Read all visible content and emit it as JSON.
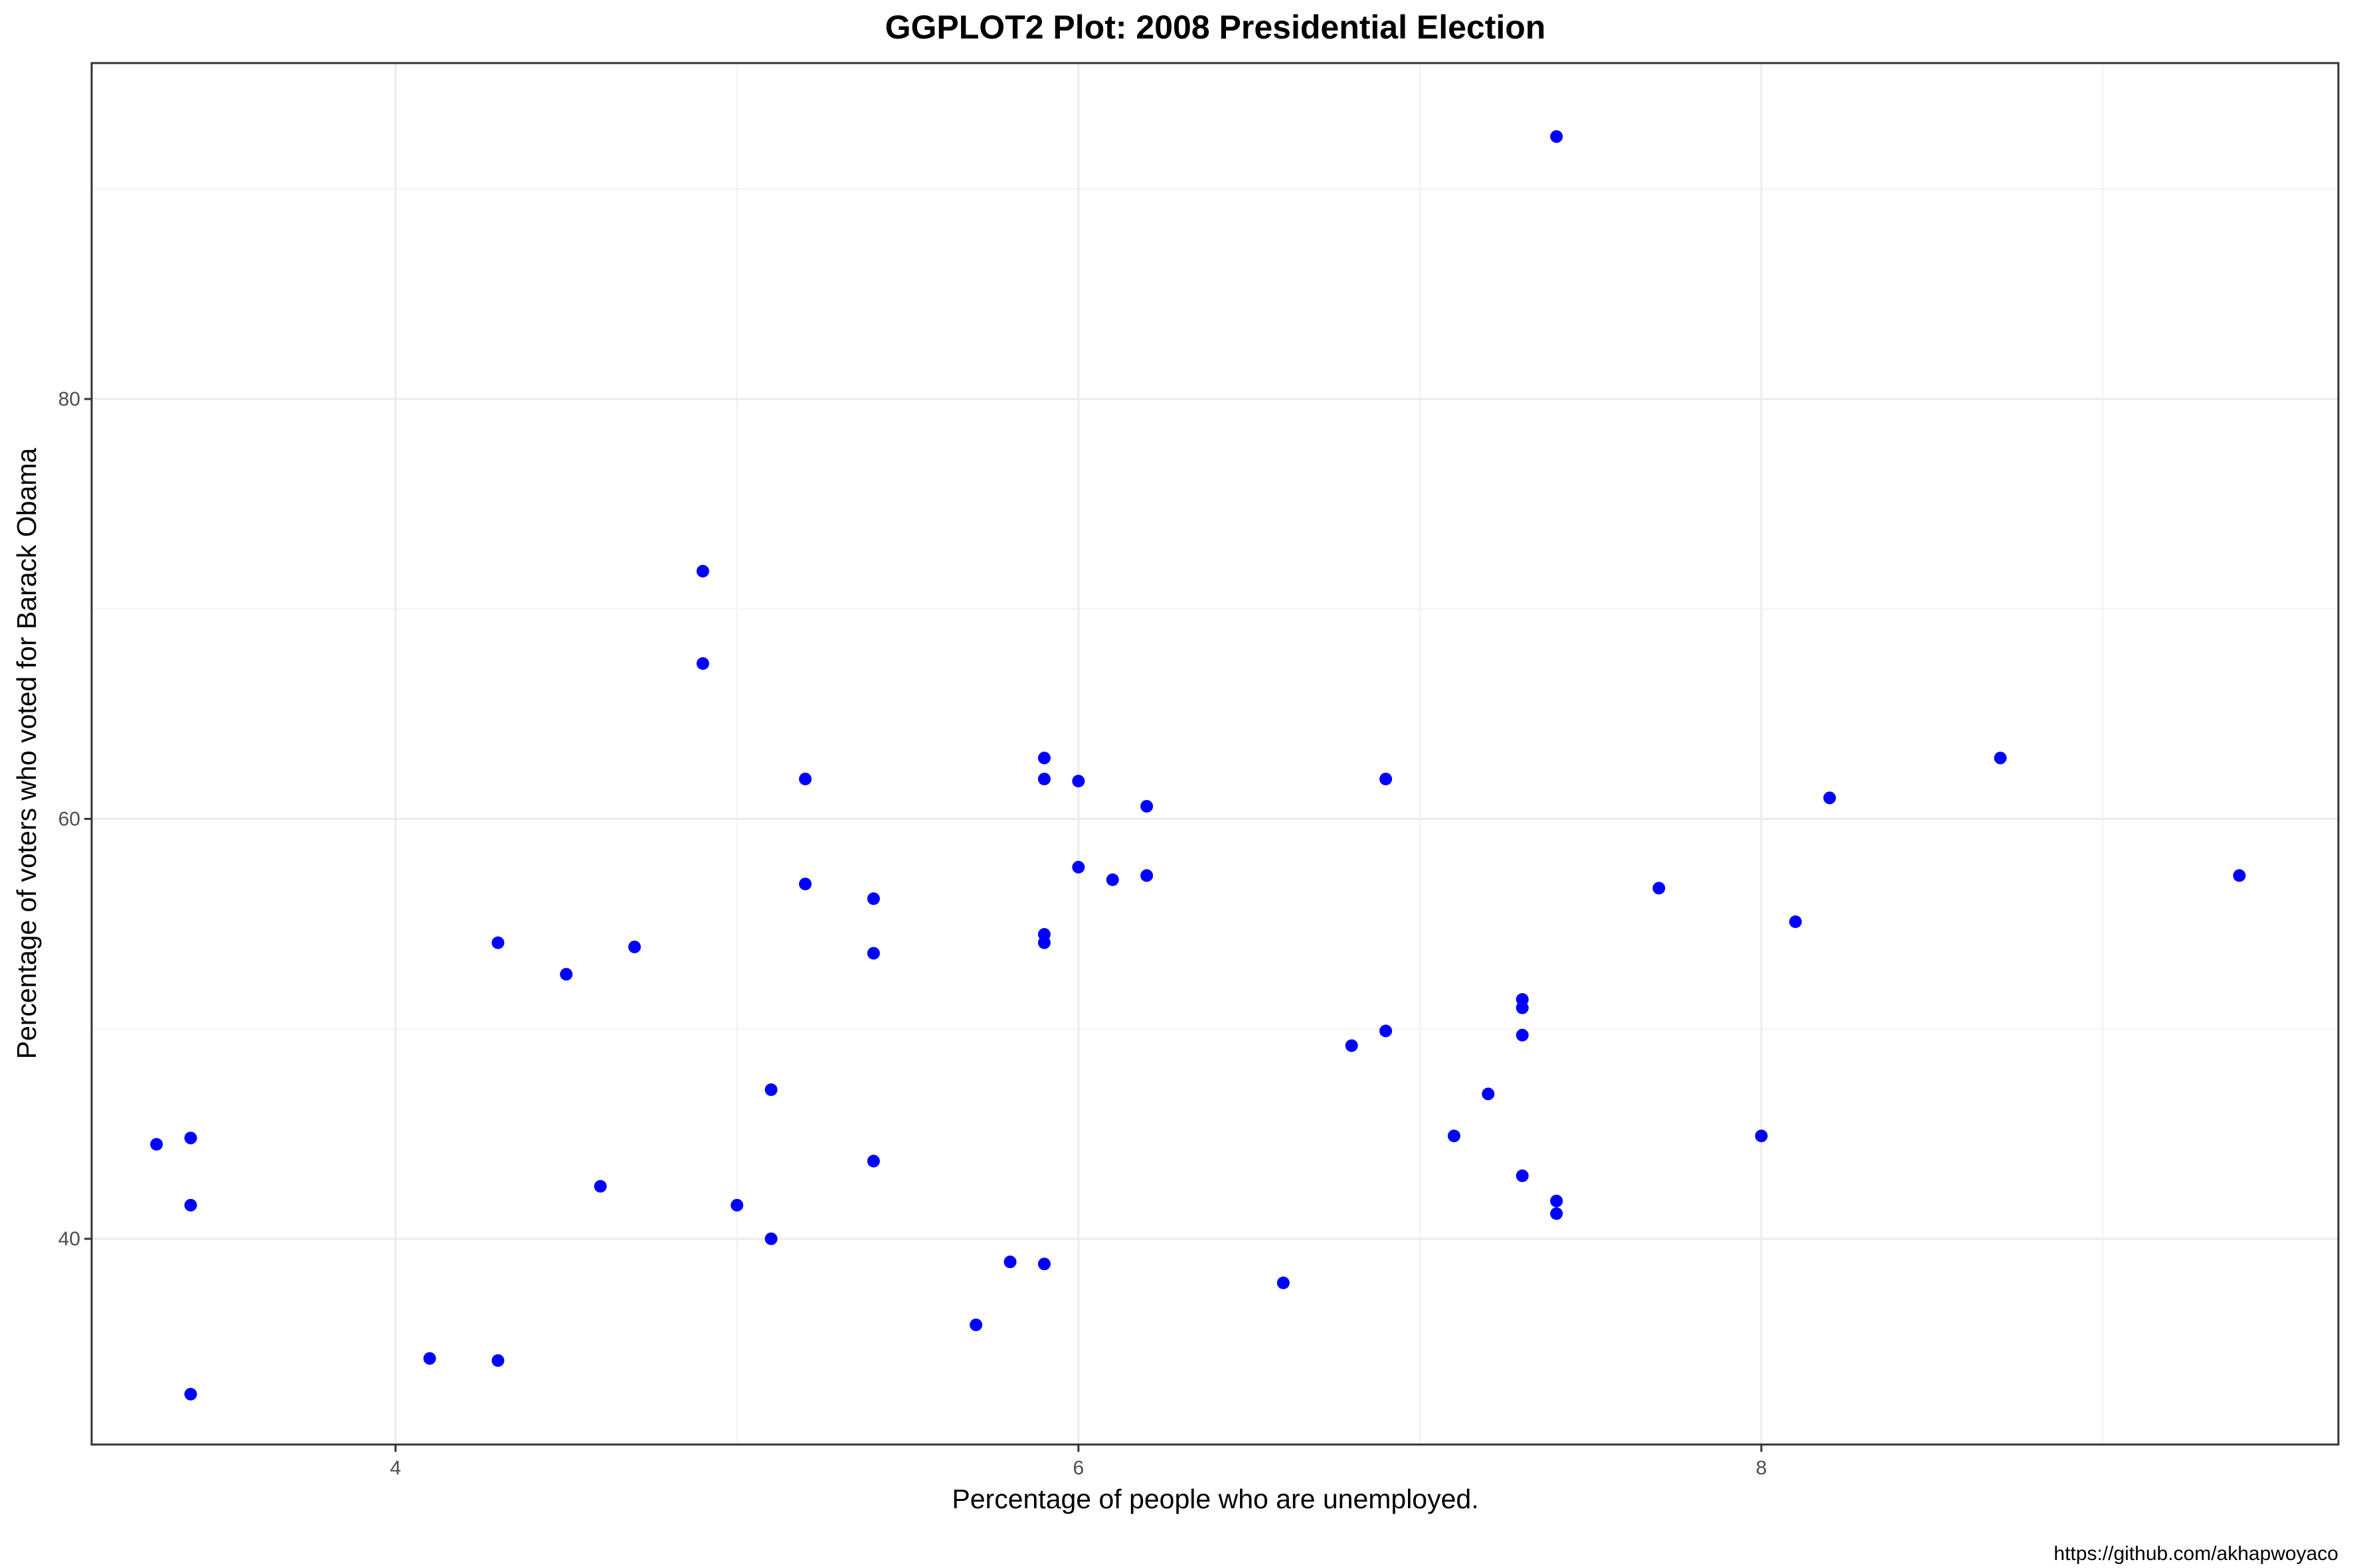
{
  "chart_data": {
    "type": "scatter",
    "title": "GGPLOT2 Plot: 2008 Presidential Election",
    "xlabel": "Percentage of people who are unemployed.",
    "ylabel": "Percentage of voters who voted for Barack Obama",
    "caption": "https://github.com/akhapwoyaco",
    "xlim": [
      3.11,
      9.69
    ],
    "ylim": [
      30.2,
      96.0
    ],
    "x_ticks": [
      4,
      6,
      8
    ],
    "x_minor_ticks": [
      5,
      7,
      9
    ],
    "y_ticks": [
      40,
      60,
      80
    ],
    "y_minor_ticks": [
      50,
      70,
      90
    ],
    "x_tick_labels": [
      "4",
      "6",
      "8"
    ],
    "y_tick_labels": [
      "40",
      "60",
      "80"
    ],
    "grid": true,
    "theme": "bw",
    "point_color": "#0000ff",
    "points": [
      {
        "x": 3.3,
        "y": 44.5
      },
      {
        "x": 3.4,
        "y": 44.8
      },
      {
        "x": 3.4,
        "y": 41.6
      },
      {
        "x": 3.4,
        "y": 32.6
      },
      {
        "x": 4.1,
        "y": 34.3
      },
      {
        "x": 4.3,
        "y": 34.2
      },
      {
        "x": 4.3,
        "y": 54.1
      },
      {
        "x": 4.5,
        "y": 52.6
      },
      {
        "x": 4.6,
        "y": 42.5
      },
      {
        "x": 4.7,
        "y": 53.9
      },
      {
        "x": 4.9,
        "y": 71.8
      },
      {
        "x": 4.9,
        "y": 67.4
      },
      {
        "x": 5.0,
        "y": 41.6
      },
      {
        "x": 5.1,
        "y": 47.1
      },
      {
        "x": 5.1,
        "y": 40.0
      },
      {
        "x": 5.2,
        "y": 61.9
      },
      {
        "x": 5.2,
        "y": 56.9
      },
      {
        "x": 5.4,
        "y": 56.2
      },
      {
        "x": 5.4,
        "y": 53.6
      },
      {
        "x": 5.4,
        "y": 43.7
      },
      {
        "x": 5.7,
        "y": 35.9
      },
      {
        "x": 5.8,
        "y": 38.9
      },
      {
        "x": 5.9,
        "y": 62.9
      },
      {
        "x": 5.9,
        "y": 61.9
      },
      {
        "x": 5.9,
        "y": 54.5
      },
      {
        "x": 5.9,
        "y": 54.1
      },
      {
        "x": 5.9,
        "y": 38.8
      },
      {
        "x": 6.0,
        "y": 61.8
      },
      {
        "x": 6.0,
        "y": 57.7
      },
      {
        "x": 6.1,
        "y": 57.1
      },
      {
        "x": 6.2,
        "y": 60.6
      },
      {
        "x": 6.2,
        "y": 57.3
      },
      {
        "x": 6.6,
        "y": 37.9
      },
      {
        "x": 6.8,
        "y": 49.2
      },
      {
        "x": 6.9,
        "y": 61.9
      },
      {
        "x": 6.9,
        "y": 49.9
      },
      {
        "x": 7.1,
        "y": 44.9
      },
      {
        "x": 7.2,
        "y": 46.9
      },
      {
        "x": 7.3,
        "y": 51.4
      },
      {
        "x": 7.3,
        "y": 51.0
      },
      {
        "x": 7.3,
        "y": 49.7
      },
      {
        "x": 7.3,
        "y": 43.0
      },
      {
        "x": 7.4,
        "y": 92.5
      },
      {
        "x": 7.4,
        "y": 41.8
      },
      {
        "x": 7.4,
        "y": 41.2
      },
      {
        "x": 7.7,
        "y": 56.7
      },
      {
        "x": 8.0,
        "y": 44.9
      },
      {
        "x": 8.1,
        "y": 55.1
      },
      {
        "x": 8.2,
        "y": 61.0
      },
      {
        "x": 8.7,
        "y": 62.9
      },
      {
        "x": 9.4,
        "y": 57.3
      }
    ]
  }
}
